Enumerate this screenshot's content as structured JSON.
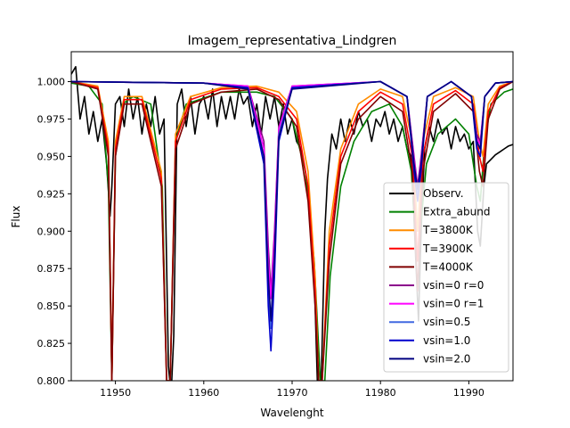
{
  "chart_data": {
    "type": "line",
    "title": "Imagem_representativa_Lindgren",
    "xlabel": "Wavelenght",
    "ylabel": "Flux",
    "xlim": [
      11945,
      11995
    ],
    "ylim": [
      0.8,
      1.02
    ],
    "x_ticks": [
      11950,
      11960,
      11970,
      11980,
      11990
    ],
    "x_tick_labels": [
      "11950",
      "11960",
      "11970",
      "11980",
      "11990"
    ],
    "y_ticks": [
      0.8,
      0.825,
      0.85,
      0.875,
      0.9,
      0.925,
      0.95,
      0.975,
      1.0
    ],
    "y_tick_labels": [
      "0.800",
      "0.825",
      "0.850",
      "0.875",
      "0.900",
      "0.925",
      "0.950",
      "0.975",
      "1.000"
    ],
    "grid": false,
    "legend_position": "lower-right",
    "series": [
      {
        "name": "Observ.",
        "color": "#000000",
        "x": [
          11945,
          11945.5,
          11946,
          11946.5,
          11947,
          11947.5,
          11948,
          11948.5,
          11949,
          11949.4,
          11949.6,
          11950,
          11950.5,
          11951,
          11951.5,
          11952,
          11952.5,
          11953,
          11953.5,
          11954,
          11954.5,
          11955,
          11955.5,
          11956.0,
          11956.3,
          11956.6,
          11957,
          11957.5,
          11958,
          11958.5,
          11959,
          11959.5,
          11960,
          11960.5,
          11961,
          11961.5,
          11962,
          11962.5,
          11963,
          11963.5,
          11964,
          11964.5,
          11965,
          11965.5,
          11966,
          11966.5,
          11967,
          11967.5,
          11968,
          11968.5,
          11969,
          11969.5,
          11970,
          11970.5,
          11971,
          11971.5,
          11972,
          11972.5,
          11972.9,
          11973.3,
          11973.7,
          11974,
          11974.5,
          11975,
          11975.5,
          11976,
          11976.5,
          11977,
          11977.5,
          11978,
          11978.5,
          11979,
          11979.5,
          11980,
          11980.5,
          11981,
          11981.5,
          11982,
          11982.5,
          11983,
          11983.5,
          11984,
          11984.3,
          11984.6,
          11985,
          11985.5,
          11986,
          11986.5,
          11987,
          11987.5,
          11988,
          11988.5,
          11989,
          11989.5,
          11990,
          11990.5,
          11991,
          11991.3,
          11991.7,
          11992,
          11992.5,
          11993,
          11993.5,
          11994,
          11994.5,
          11995
        ],
        "y": [
          1.005,
          1.01,
          0.975,
          0.99,
          0.965,
          0.98,
          0.96,
          0.975,
          0.945,
          0.91,
          0.93,
          0.985,
          0.99,
          0.97,
          0.995,
          0.975,
          0.99,
          0.965,
          0.985,
          0.97,
          0.99,
          0.965,
          0.975,
          0.81,
          0.79,
          0.83,
          0.985,
          0.995,
          0.97,
          0.99,
          0.965,
          0.985,
          0.99,
          0.975,
          0.995,
          0.97,
          0.99,
          0.975,
          0.99,
          0.975,
          0.995,
          0.985,
          0.99,
          0.97,
          0.985,
          0.965,
          0.99,
          0.975,
          0.99,
          0.97,
          0.985,
          0.965,
          0.975,
          0.96,
          0.955,
          0.94,
          0.92,
          0.87,
          0.79,
          0.8,
          0.9,
          0.935,
          0.965,
          0.955,
          0.975,
          0.96,
          0.975,
          0.965,
          0.98,
          0.97,
          0.975,
          0.96,
          0.975,
          0.97,
          0.98,
          0.965,
          0.975,
          0.96,
          0.97,
          0.955,
          0.95,
          0.88,
          0.84,
          0.9,
          0.955,
          0.97,
          0.96,
          0.975,
          0.965,
          0.97,
          0.955,
          0.97,
          0.96,
          0.965,
          0.955,
          0.96,
          0.9,
          0.89,
          0.93,
          0.945,
          0.948,
          0.951,
          0.953,
          0.955,
          0.957,
          0.958
        ]
      },
      {
        "name": "Extra_abund",
        "color": "#008000",
        "x": [
          11945,
          11947,
          11948.5,
          11949.2,
          11949.6,
          11950.0,
          11950.8,
          11952,
          11954,
          11955.3,
          11955.8,
          11956.2,
          11956.8,
          11958,
          11962,
          11966,
          11968,
          11970,
          11971.5,
          11972.5,
          11973.2,
          11973.7,
          11974.3,
          11975.5,
          11977,
          11979,
          11981,
          11982.5,
          11983.5,
          11984.1,
          11984.5,
          11985.2,
          11986.5,
          11988.5,
          11990,
          11990.9,
          11991.3,
          11991.8,
          11992.5,
          11994,
          11995
        ],
        "y": [
          0.999,
          0.997,
          0.985,
          0.93,
          0.8,
          0.95,
          0.985,
          0.99,
          0.985,
          0.93,
          0.8,
          0.8,
          0.96,
          0.985,
          0.993,
          0.993,
          0.99,
          0.975,
          0.94,
          0.88,
          0.8,
          0.8,
          0.87,
          0.93,
          0.96,
          0.98,
          0.985,
          0.97,
          0.94,
          0.88,
          0.9,
          0.945,
          0.965,
          0.975,
          0.965,
          0.93,
          0.92,
          0.96,
          0.985,
          0.993,
          0.995
        ]
      },
      {
        "name": "T=3800K",
        "color": "#ff8c00",
        "x": [
          11945,
          11948,
          11949.2,
          11949.6,
          11950.0,
          11951,
          11953,
          11955.2,
          11955.8,
          11956.2,
          11956.8,
          11958.5,
          11962,
          11966,
          11968.5,
          11970.5,
          11971.8,
          11972.6,
          11973.0,
          11973.4,
          11974.2,
          11975.5,
          11977.5,
          11980,
          11982.5,
          11983.6,
          11984.2,
          11984.8,
          11986,
          11988.5,
          11990.5,
          11991.2,
          11991.6,
          11992.2,
          11993.5,
          11995
        ],
        "y": [
          1.0,
          0.997,
          0.96,
          0.8,
          0.96,
          0.99,
          0.99,
          0.94,
          0.8,
          0.8,
          0.965,
          0.99,
          0.996,
          0.997,
          0.993,
          0.98,
          0.94,
          0.87,
          0.8,
          0.8,
          0.9,
          0.955,
          0.985,
          0.995,
          0.99,
          0.96,
          0.9,
          0.96,
          0.99,
          0.996,
          0.99,
          0.96,
          0.95,
          0.985,
          0.997,
          1.0
        ]
      },
      {
        "name": "T=3900K",
        "color": "#ff0000",
        "x": [
          11945,
          11948,
          11949.2,
          11949.6,
          11950.0,
          11951,
          11953,
          11955.2,
          11955.8,
          11956.2,
          11956.8,
          11958.5,
          11962,
          11966,
          11968.5,
          11970.5,
          11971.8,
          11972.6,
          11973.0,
          11973.4,
          11974.2,
          11975.5,
          11977.5,
          11980,
          11982.5,
          11983.6,
          11984.2,
          11984.8,
          11986,
          11988.5,
          11990.5,
          11991.2,
          11991.6,
          11992.2,
          11993.5,
          11995
        ],
        "y": [
          1.0,
          0.996,
          0.955,
          0.8,
          0.955,
          0.988,
          0.988,
          0.935,
          0.8,
          0.8,
          0.96,
          0.988,
          0.995,
          0.996,
          0.99,
          0.975,
          0.93,
          0.86,
          0.8,
          0.8,
          0.89,
          0.95,
          0.98,
          0.993,
          0.985,
          0.95,
          0.88,
          0.95,
          0.985,
          0.994,
          0.985,
          0.95,
          0.94,
          0.98,
          0.996,
          1.0
        ]
      },
      {
        "name": "T=4000K",
        "color": "#800000",
        "x": [
          11945,
          11948,
          11949.2,
          11949.6,
          11950.0,
          11951,
          11953,
          11955.2,
          11955.8,
          11956.2,
          11956.8,
          11958.5,
          11962,
          11966,
          11968.5,
          11970.5,
          11971.8,
          11972.6,
          11973.0,
          11973.4,
          11974.2,
          11975.5,
          11977.5,
          11980,
          11982.5,
          11983.6,
          11984.2,
          11984.8,
          11986,
          11988.5,
          11990.5,
          11991.2,
          11991.6,
          11992.2,
          11993.5,
          11995
        ],
        "y": [
          1.0,
          0.995,
          0.95,
          0.8,
          0.95,
          0.985,
          0.985,
          0.93,
          0.8,
          0.8,
          0.955,
          0.985,
          0.993,
          0.995,
          0.988,
          0.97,
          0.92,
          0.85,
          0.8,
          0.8,
          0.88,
          0.945,
          0.975,
          0.99,
          0.98,
          0.94,
          0.86,
          0.94,
          0.98,
          0.992,
          0.98,
          0.94,
          0.93,
          0.975,
          0.995,
          1.0
        ]
      },
      {
        "name": "vsin=0 r=0",
        "color": "#8b008b",
        "x": [
          11945,
          11960,
          11965,
          11966.8,
          11967.3,
          11967.6,
          11968.0,
          11968.5,
          11970,
          11980,
          11983,
          11983.8,
          11984.2,
          11984.6,
          11985.3,
          11988,
          11990.3,
          11990.9,
          11991.3,
          11991.8,
          11993,
          11995
        ],
        "y": [
          1.0,
          0.999,
          0.997,
          0.96,
          0.89,
          0.86,
          0.9,
          0.97,
          0.997,
          1.0,
          0.99,
          0.95,
          0.93,
          0.95,
          0.99,
          1.0,
          0.99,
          0.965,
          0.96,
          0.99,
          0.999,
          1.0
        ]
      },
      {
        "name": "vsin=0 r=1",
        "color": "#ff00ff",
        "x": [
          11945,
          11960,
          11965,
          11966.8,
          11967.3,
          11967.6,
          11968.0,
          11968.5,
          11970,
          11980,
          11983,
          11983.8,
          11984.2,
          11984.6,
          11985.3,
          11988,
          11990.3,
          11990.9,
          11991.3,
          11991.8,
          11993,
          11995
        ],
        "y": [
          1.0,
          0.999,
          0.997,
          0.955,
          0.88,
          0.855,
          0.895,
          0.968,
          0.997,
          1.0,
          0.99,
          0.948,
          0.928,
          0.948,
          0.99,
          1.0,
          0.99,
          0.962,
          0.958,
          0.99,
          0.999,
          1.0
        ]
      },
      {
        "name": "vsin=0.5",
        "color": "#4169e1",
        "x": [
          11945,
          11960,
          11965,
          11966.8,
          11967.3,
          11967.6,
          11968.0,
          11968.5,
          11970,
          11980,
          11983,
          11983.8,
          11984.2,
          11984.6,
          11985.3,
          11988,
          11990.3,
          11990.9,
          11991.3,
          11991.8,
          11993,
          11995
        ],
        "y": [
          1.0,
          0.999,
          0.996,
          0.95,
          0.86,
          0.835,
          0.88,
          0.965,
          0.996,
          1.0,
          0.99,
          0.945,
          0.925,
          0.945,
          0.99,
          1.0,
          0.99,
          0.96,
          0.955,
          0.99,
          0.999,
          1.0
        ]
      },
      {
        "name": "vsin=1.0",
        "color": "#0000cd",
        "x": [
          11945,
          11960,
          11965,
          11966.8,
          11967.3,
          11967.6,
          11968.0,
          11968.5,
          11970,
          11980,
          11983,
          11983.8,
          11984.2,
          11984.6,
          11985.3,
          11988,
          11990.3,
          11990.9,
          11991.3,
          11991.8,
          11993,
          11995
        ],
        "y": [
          1.0,
          0.999,
          0.996,
          0.945,
          0.85,
          0.82,
          0.87,
          0.96,
          0.996,
          1.0,
          0.99,
          0.94,
          0.92,
          0.94,
          0.99,
          1.0,
          0.99,
          0.955,
          0.95,
          0.99,
          0.999,
          1.0
        ]
      },
      {
        "name": "vsin=2.0",
        "color": "#000080",
        "x": [
          11945,
          11960,
          11965,
          11966.8,
          11967.3,
          11967.6,
          11968.0,
          11968.5,
          11970,
          11980,
          11983,
          11983.8,
          11984.2,
          11984.6,
          11985.3,
          11988,
          11990.3,
          11990.9,
          11991.3,
          11991.8,
          11993,
          11995
        ],
        "y": [
          1.0,
          0.999,
          0.995,
          0.95,
          0.87,
          0.84,
          0.885,
          0.963,
          0.995,
          1.0,
          0.99,
          0.945,
          0.928,
          0.945,
          0.99,
          1.0,
          0.99,
          0.96,
          0.955,
          0.99,
          0.999,
          1.0
        ]
      }
    ]
  }
}
